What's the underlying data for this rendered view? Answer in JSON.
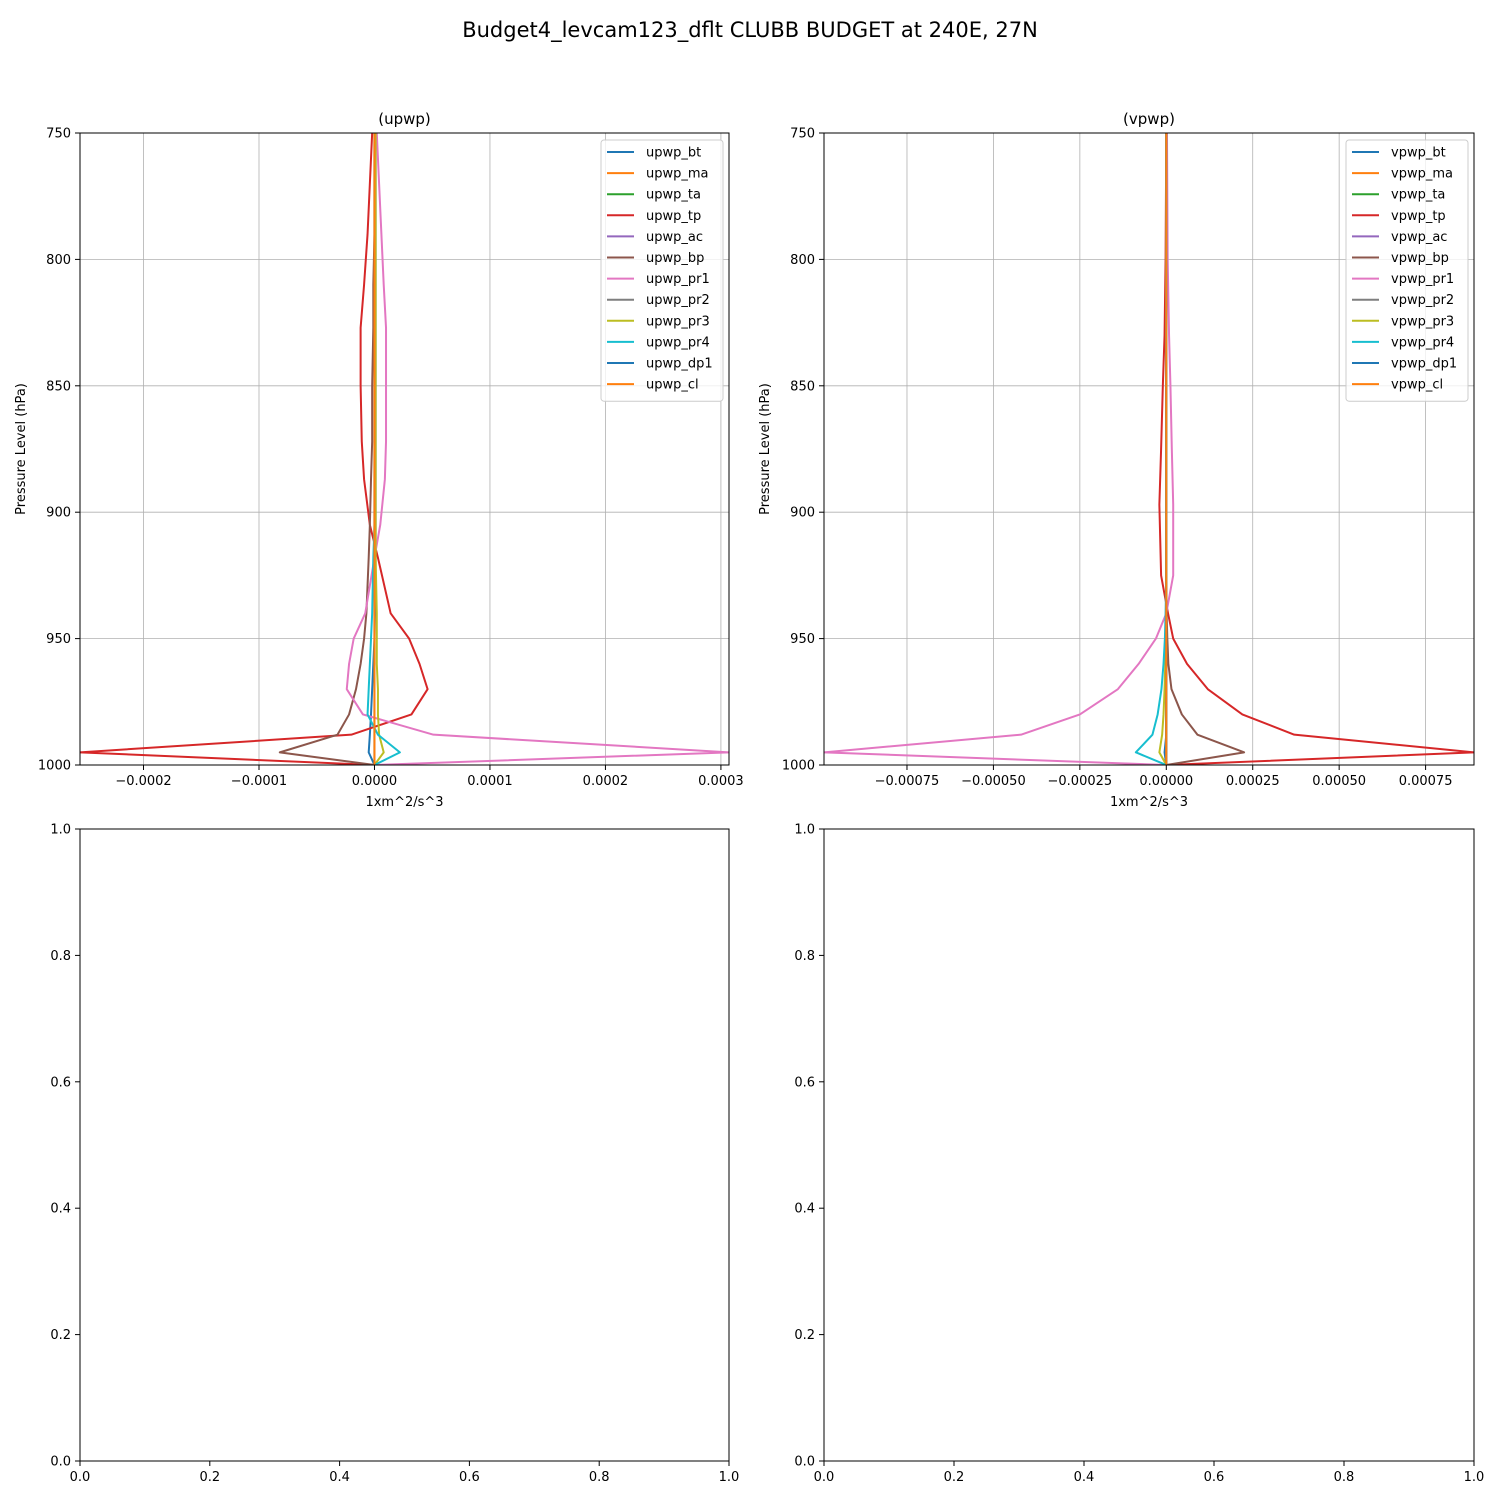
{
  "figure": {
    "title": "Budget4_levcam123_dflt CLUBB BUDGET at 240E, 27N"
  },
  "colors": {
    "tab10": [
      "#1f77b4",
      "#ff7f0e",
      "#2ca02c",
      "#d62728",
      "#9467bd",
      "#8c564b",
      "#e377c2",
      "#7f7f7f",
      "#bcbd22",
      "#17becf",
      "#1f77b4",
      "#ff7f0e"
    ],
    "grid": "#b0b0b0"
  },
  "chart_data": [
    {
      "type": "line",
      "title": "(upwp)",
      "xlabel": "1xm^2/s^3",
      "ylabel": "Pressure Level (hPa)",
      "xlim": [
        -0.000255,
        0.000307
      ],
      "ylim": [
        1000,
        750
      ],
      "grid": true,
      "legend": "top-right",
      "xticks": [
        -0.0002,
        -0.0001,
        0.0,
        0.0001,
        0.0002,
        0.0003
      ],
      "xtick_labels": [
        "−0.0002",
        "−0.0001",
        "0.0000",
        "0.0001",
        "0.0002",
        "0.0003"
      ],
      "yticks": [
        750,
        800,
        850,
        900,
        950,
        1000
      ],
      "ytick_labels": [
        "750",
        "800",
        "850",
        "900",
        "950",
        "1000"
      ],
      "y": [
        750,
        770,
        790,
        810,
        827,
        850,
        872,
        887,
        905,
        918,
        940,
        950,
        960,
        970,
        980,
        988,
        995,
        1000
      ],
      "series": [
        {
          "name": "upwp_bt",
          "values": [
            1e-06,
            1e-06,
            1e-06,
            1e-06,
            1e-06,
            1e-06,
            1e-06,
            1e-06,
            1e-06,
            1e-06,
            5e-07,
            0.0,
            -1e-06,
            -2e-06,
            -3e-06,
            -4e-06,
            -5e-06,
            0.0
          ]
        },
        {
          "name": "upwp_ma",
          "values": [
            0.0,
            0.0,
            0.0,
            0.0,
            0.0,
            0.0,
            0.0,
            0.0,
            0.0,
            0.0,
            0.0,
            0.0,
            0.0,
            0.0,
            0.0,
            0.0,
            0.0,
            0.0
          ]
        },
        {
          "name": "upwp_ta",
          "values": [
            0.0,
            0.0,
            0.0,
            0.0,
            0.0,
            0.0,
            0.0,
            0.0,
            0.0,
            0.0,
            0.0,
            0.0,
            0.0,
            0.0,
            0.0,
            0.0,
            0.0,
            0.0
          ]
        },
        {
          "name": "upwp_tp",
          "values": [
            -2e-06,
            -4e-06,
            -6e-06,
            -9e-06,
            -1.2e-05,
            -1.2e-05,
            -1.1e-05,
            -9e-06,
            -4e-06,
            3e-06,
            1.4e-05,
            3e-05,
            3.9e-05,
            4.6e-05,
            3.2e-05,
            -2e-05,
            -0.000255,
            0.0
          ]
        },
        {
          "name": "upwp_ac",
          "values": [
            0.0,
            0.0,
            0.0,
            0.0,
            0.0,
            0.0,
            0.0,
            0.0,
            0.0,
            0.0,
            0.0,
            0.0,
            0.0,
            0.0,
            0.0,
            0.0,
            0.0,
            0.0
          ]
        },
        {
          "name": "upwp_bp",
          "values": [
            0.0,
            0.0,
            0.0,
            -1e-06,
            -1e-06,
            -2e-06,
            -2e-06,
            -3e-06,
            -4e-06,
            -5e-06,
            -7e-06,
            -9e-06,
            -1.2e-05,
            -1.6e-05,
            -2.2e-05,
            -3.2e-05,
            -8.2e-05,
            0.0
          ]
        },
        {
          "name": "upwp_pr1",
          "values": [
            2e-06,
            4e-06,
            6e-06,
            8e-06,
            1e-05,
            1e-05,
            1e-05,
            9e-06,
            5e-06,
            0.0,
            -8e-06,
            -1.8e-05,
            -2.2e-05,
            -2.4e-05,
            -1e-05,
            5.1e-05,
            0.000307,
            0.0
          ]
        },
        {
          "name": "upwp_pr2",
          "values": [
            0.0,
            0.0,
            0.0,
            0.0,
            0.0,
            0.0,
            0.0,
            0.0,
            0.0,
            0.0,
            0.0,
            0.0,
            0.0,
            0.0,
            0.0,
            0.0,
            0.0,
            0.0
          ]
        },
        {
          "name": "upwp_pr3",
          "values": [
            1e-06,
            1e-06,
            1e-06,
            1e-06,
            1e-06,
            1e-06,
            1e-06,
            1e-06,
            1e-06,
            1e-06,
            2e-06,
            2e-06,
            2e-06,
            3e-06,
            3e-06,
            4e-06,
            8e-06,
            0.0
          ]
        },
        {
          "name": "upwp_pr4",
          "values": [
            0.0,
            0.0,
            0.0,
            0.0,
            0.0,
            0.0,
            0.0,
            0.0,
            0.0,
            -1e-06,
            -2e-06,
            -3e-06,
            -4e-06,
            -5e-06,
            -6e-06,
            3e-06,
            2.2e-05,
            0.0
          ]
        },
        {
          "name": "upwp_dp1",
          "values": [
            0.0,
            0.0,
            0.0,
            0.0,
            0.0,
            0.0,
            0.0,
            0.0,
            0.0,
            0.0,
            0.0,
            0.0,
            0.0,
            0.0,
            0.0,
            0.0,
            0.0,
            0.0
          ]
        },
        {
          "name": "upwp_cl",
          "values": [
            0.0,
            0.0,
            0.0,
            0.0,
            0.0,
            0.0,
            0.0,
            0.0,
            0.0,
            0.0,
            0.0,
            0.0,
            0.0,
            0.0,
            0.0,
            0.0,
            0.0,
            0.0
          ]
        }
      ]
    },
    {
      "type": "line",
      "title": "(vpwp)",
      "xlabel": "1xm^2/s^3",
      "ylabel": "Pressure Level (hPa)",
      "xlim": [
        -0.00099,
        0.00089
      ],
      "ylim": [
        1000,
        750
      ],
      "grid": true,
      "legend": "top-right",
      "xticks": [
        -0.00075,
        -0.0005,
        -0.00025,
        0.0,
        0.00025,
        0.0005,
        0.00075
      ],
      "xtick_labels": [
        "−0.00075",
        "−0.00050",
        "−0.00025",
        "0.00000",
        "0.00025",
        "0.00050",
        "0.00075"
      ],
      "yticks": [
        750,
        800,
        850,
        900,
        950,
        1000
      ],
      "ytick_labels": [
        "750",
        "800",
        "850",
        "900",
        "950",
        "1000"
      ],
      "y": [
        750,
        800,
        830,
        850,
        875,
        897,
        925,
        940,
        950,
        960,
        970,
        980,
        988,
        995,
        1000
      ],
      "series": [
        {
          "name": "vpwp_bt",
          "values": [
            0.0,
            0.0,
            0.0,
            0.0,
            0.0,
            0.0,
            0.0,
            0.0,
            0.0,
            0.0,
            0.0,
            0.0,
            0.0,
            -5e-06,
            0.0
          ]
        },
        {
          "name": "vpwp_ma",
          "values": [
            0.0,
            0.0,
            0.0,
            0.0,
            0.0,
            0.0,
            0.0,
            0.0,
            0.0,
            0.0,
            0.0,
            0.0,
            0.0,
            0.0,
            0.0
          ]
        },
        {
          "name": "vpwp_ta",
          "values": [
            0.0,
            0.0,
            0.0,
            0.0,
            0.0,
            0.0,
            0.0,
            0.0,
            0.0,
            0.0,
            0.0,
            0.0,
            0.0,
            0.0,
            0.0
          ]
        },
        {
          "name": "vpwp_tp",
          "values": [
            0.0,
            -2e-06,
            -5e-06,
            -1e-05,
            -1.5e-05,
            -2e-05,
            -1.5e-05,
            5e-06,
            2e-05,
            6e-05,
            0.00012,
            0.00022,
            0.00037,
            0.00089,
            0.0
          ]
        },
        {
          "name": "vpwp_ac",
          "values": [
            0.0,
            0.0,
            0.0,
            0.0,
            0.0,
            0.0,
            0.0,
            0.0,
            0.0,
            0.0,
            0.0,
            0.0,
            0.0,
            0.0,
            0.0
          ]
        },
        {
          "name": "vpwp_bp",
          "values": [
            0.0,
            0.0,
            0.0,
            0.0,
            0.0,
            0.0,
            0.0,
            1e-06,
            3e-06,
            6e-06,
            1.5e-05,
            4.5e-05,
            9e-05,
            0.000225,
            0.0
          ]
        },
        {
          "name": "vpwp_pr1",
          "values": [
            2e-06,
            4e-06,
            8e-06,
            1.2e-05,
            1.6e-05,
            2e-05,
            2e-05,
            0.0,
            -3e-05,
            -8e-05,
            -0.00014,
            -0.00025,
            -0.00042,
            -0.00099,
            0.0
          ]
        },
        {
          "name": "vpwp_pr2",
          "values": [
            0.0,
            0.0,
            0.0,
            0.0,
            0.0,
            0.0,
            0.0,
            0.0,
            0.0,
            0.0,
            0.0,
            0.0,
            0.0,
            0.0,
            0.0
          ]
        },
        {
          "name": "vpwp_pr3",
          "values": [
            0.0,
            0.0,
            0.0,
            0.0,
            0.0,
            0.0,
            0.0,
            -1e-06,
            -2e-06,
            -3e-06,
            -5e-06,
            -8e-06,
            -1.2e-05,
            -2e-05,
            0.0
          ]
        },
        {
          "name": "vpwp_pr4",
          "values": [
            0.0,
            0.0,
            0.0,
            0.0,
            0.0,
            0.0,
            0.0,
            -2e-06,
            -4e-06,
            -8e-06,
            -1.4e-05,
            -2.5e-05,
            -4e-05,
            -8.8e-05,
            0.0
          ]
        },
        {
          "name": "vpwp_dp1",
          "values": [
            0.0,
            0.0,
            0.0,
            0.0,
            0.0,
            0.0,
            0.0,
            0.0,
            0.0,
            0.0,
            0.0,
            0.0,
            0.0,
            0.0,
            0.0
          ]
        },
        {
          "name": "vpwp_cl",
          "values": [
            0.0,
            0.0,
            0.0,
            0.0,
            0.0,
            0.0,
            0.0,
            0.0,
            0.0,
            0.0,
            0.0,
            0.0,
            0.0,
            0.0,
            0.0
          ]
        }
      ]
    },
    {
      "type": "line",
      "title": "",
      "xlim": [
        0,
        1
      ],
      "ylim": [
        0,
        1
      ],
      "grid": false,
      "xticks": [
        0.0,
        0.2,
        0.4,
        0.6,
        0.8,
        1.0
      ],
      "xtick_labels": [
        "0.0",
        "0.2",
        "0.4",
        "0.6",
        "0.8",
        "1.0"
      ],
      "yticks": [
        0.0,
        0.2,
        0.4,
        0.6,
        0.8,
        1.0
      ],
      "ytick_labels": [
        "0.0",
        "0.2",
        "0.4",
        "0.6",
        "0.8",
        "1.0"
      ],
      "series": []
    },
    {
      "type": "line",
      "title": "",
      "xlim": [
        0,
        1
      ],
      "ylim": [
        0,
        1
      ],
      "grid": false,
      "xticks": [
        0.0,
        0.2,
        0.4,
        0.6,
        0.8,
        1.0
      ],
      "xtick_labels": [
        "0.0",
        "0.2",
        "0.4",
        "0.6",
        "0.8",
        "1.0"
      ],
      "yticks": [
        0.0,
        0.2,
        0.4,
        0.6,
        0.8,
        1.0
      ],
      "ytick_labels": [
        "0.0",
        "0.2",
        "0.4",
        "0.6",
        "0.8",
        "1.0"
      ],
      "series": []
    }
  ]
}
